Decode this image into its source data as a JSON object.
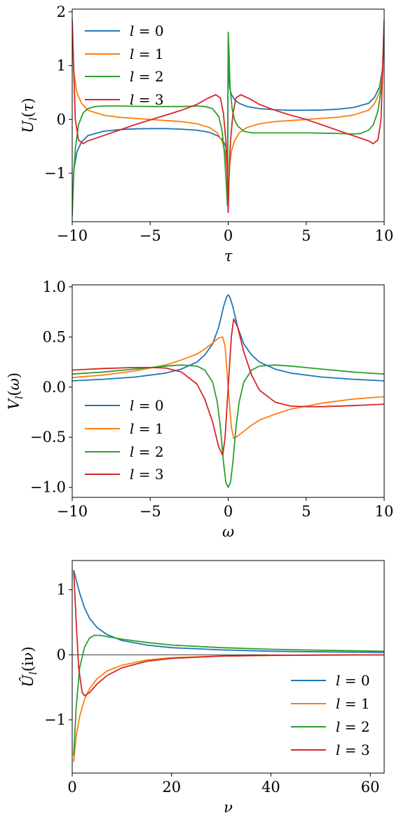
{
  "colors": [
    "#1f77b4",
    "#ff7f0e",
    "#2ca02c",
    "#d62728"
  ],
  "chart_data": [
    {
      "type": "line",
      "xlabel": "τ",
      "ylabel": "U_l(τ)",
      "xlim": [
        -10,
        10
      ],
      "ylim": [
        -1.9,
        2.05
      ],
      "xticks": [
        -10,
        -5,
        0,
        5,
        10
      ],
      "xtick_labels": [
        "−10",
        "−5",
        "0",
        "5",
        "10"
      ],
      "yticks": [
        -1,
        0,
        1,
        2
      ],
      "ytick_labels": [
        "−1",
        "0",
        "1",
        "2"
      ],
      "legend": "top-left",
      "grid": false,
      "series": [
        {
          "name": "l = 0",
          "x": [
            -10,
            -9.9,
            -9.7,
            -9.4,
            -9,
            -8,
            -7,
            -6,
            -5,
            -4,
            -3,
            -2,
            -1.2,
            -0.7,
            -0.4,
            -0.2,
            -0.1,
            -0.03,
            0,
            0.03,
            0.1,
            0.2,
            0.4,
            0.7,
            1.2,
            2,
            3,
            4,
            5,
            6,
            7,
            8,
            9,
            9.4,
            9.7,
            9.9,
            10
          ],
          "y": [
            -1.75,
            -0.95,
            -0.6,
            -0.42,
            -0.3,
            -0.22,
            -0.19,
            -0.175,
            -0.17,
            -0.17,
            -0.18,
            -0.2,
            -0.24,
            -0.3,
            -0.37,
            -0.47,
            -0.58,
            -0.9,
            1.3,
            0.9,
            0.58,
            0.47,
            0.37,
            0.3,
            0.24,
            0.2,
            0.18,
            0.17,
            0.17,
            0.175,
            0.19,
            0.22,
            0.3,
            0.42,
            0.6,
            0.95,
            1.75
          ]
        },
        {
          "name": "l = 1",
          "x": [
            -10,
            -9.9,
            -9.7,
            -9.4,
            -9,
            -8,
            -7,
            -6,
            -5,
            -4,
            -3,
            -2,
            -1.2,
            -0.7,
            -0.4,
            -0.2,
            -0.1,
            -0.03,
            0,
            0.03,
            0.1,
            0.2,
            0.4,
            0.7,
            1.2,
            2,
            3,
            4,
            5,
            6,
            7,
            8,
            9,
            9.4,
            9.7,
            9.9,
            10
          ],
          "y": [
            1.75,
            0.9,
            0.5,
            0.3,
            0.17,
            0.08,
            0.04,
            0.02,
            0.0,
            -0.02,
            -0.04,
            -0.08,
            -0.15,
            -0.25,
            -0.4,
            -0.6,
            -0.85,
            -1.2,
            -1.6,
            -1.2,
            -0.85,
            -0.6,
            -0.4,
            -0.25,
            -0.15,
            -0.08,
            -0.04,
            -0.02,
            0.0,
            0.02,
            0.04,
            0.08,
            0.17,
            0.3,
            0.5,
            0.9,
            1.75
          ]
        },
        {
          "name": "l = 2",
          "x": [
            -10,
            -9.9,
            -9.8,
            -9.6,
            -9.3,
            -9,
            -8.5,
            -8,
            -7,
            -5,
            -3,
            -2,
            -1.5,
            -1,
            -0.6,
            -0.4,
            -0.25,
            -0.12,
            -0.05,
            0,
            0.05,
            0.12,
            0.25,
            0.4,
            0.6,
            1,
            1.5,
            2,
            3,
            5,
            7,
            8,
            8.5,
            9,
            9.3,
            9.6,
            9.8,
            9.9,
            10
          ],
          "y": [
            -1.8,
            -1.0,
            -0.55,
            -0.1,
            0.12,
            0.2,
            0.24,
            0.25,
            0.25,
            0.24,
            0.24,
            0.25,
            0.24,
            0.2,
            0.05,
            -0.2,
            -0.6,
            -1.2,
            -1.6,
            1.62,
            1.3,
            0.6,
            0.2,
            0.0,
            -0.12,
            -0.22,
            -0.25,
            -0.25,
            -0.25,
            -0.25,
            -0.26,
            -0.27,
            -0.26,
            -0.2,
            -0.1,
            0.15,
            0.55,
            1.0,
            1.8
          ]
        },
        {
          "name": "l = 3",
          "x": [
            -10,
            -9.9,
            -9.8,
            -9.6,
            -9.3,
            -9,
            -8,
            -7,
            -6,
            -5,
            -4,
            -3,
            -2,
            -1.4,
            -0.8,
            -0.5,
            -0.3,
            -0.15,
            -0.06,
            0,
            0.06,
            0.15,
            0.3,
            0.5,
            0.8,
            1.4,
            2,
            3,
            4,
            5,
            6,
            7,
            8,
            9,
            9.3,
            9.6,
            9.8,
            9.9,
            10
          ],
          "y": [
            1.85,
            0.9,
            0.0,
            -0.38,
            -0.45,
            -0.4,
            -0.3,
            -0.2,
            -0.1,
            -0.01,
            0.08,
            0.17,
            0.28,
            0.38,
            0.46,
            0.4,
            0.1,
            -0.4,
            -1.0,
            -1.73,
            -1.0,
            -0.4,
            0.1,
            0.4,
            0.46,
            0.38,
            0.28,
            0.17,
            0.08,
            0.0,
            -0.1,
            -0.2,
            -0.3,
            -0.4,
            -0.45,
            -0.38,
            0.0,
            0.9,
            1.85
          ]
        }
      ]
    },
    {
      "type": "line",
      "xlabel": "ω",
      "ylabel": "V_l(ω)",
      "xlim": [
        -10,
        10
      ],
      "ylim": [
        -1.1,
        1.02
      ],
      "xticks": [
        -10,
        -5,
        0,
        5,
        10
      ],
      "xtick_labels": [
        "−10",
        "−5",
        "0",
        "5",
        "10"
      ],
      "yticks": [
        -1.0,
        -0.5,
        0.0,
        0.5,
        1.0
      ],
      "ytick_labels": [
        "−1.0",
        "−0.5",
        "0.0",
        "0.5",
        "1.0"
      ],
      "legend": "lower-left",
      "grid": false,
      "series": [
        {
          "name": "l = 0",
          "x": [
            -10,
            -8,
            -6,
            -4,
            -3,
            -2,
            -1.5,
            -1,
            -0.6,
            -0.3,
            -0.1,
            0,
            0.1,
            0.3,
            0.6,
            1,
            1.5,
            2,
            3,
            4,
            6,
            8,
            10
          ],
          "y": [
            0.062,
            0.078,
            0.1,
            0.14,
            0.18,
            0.25,
            0.32,
            0.43,
            0.6,
            0.8,
            0.9,
            0.92,
            0.9,
            0.8,
            0.6,
            0.43,
            0.32,
            0.25,
            0.18,
            0.14,
            0.1,
            0.078,
            0.062
          ]
        },
        {
          "name": "l = 1",
          "x": [
            -10,
            -8,
            -6,
            -4,
            -3,
            -2,
            -1.5,
            -1,
            -0.6,
            -0.35,
            -0.2,
            -0.1,
            0,
            0.1,
            0.2,
            0.35,
            0.6,
            1,
            1.5,
            2,
            3,
            4,
            6,
            8,
            10
          ],
          "y": [
            0.095,
            0.12,
            0.16,
            0.22,
            0.27,
            0.33,
            0.38,
            0.44,
            0.49,
            0.5,
            0.4,
            0.2,
            0.0,
            -0.2,
            -0.4,
            -0.51,
            -0.49,
            -0.44,
            -0.38,
            -0.33,
            -0.27,
            -0.22,
            -0.16,
            -0.12,
            -0.095
          ]
        },
        {
          "name": "l = 2",
          "x": [
            -10,
            -8,
            -6,
            -4,
            -3,
            -2,
            -1.5,
            -1,
            -0.7,
            -0.5,
            -0.3,
            -0.15,
            0,
            0.15,
            0.3,
            0.5,
            0.7,
            1,
            1.5,
            2,
            3,
            4,
            6,
            8,
            10
          ],
          "y": [
            0.13,
            0.15,
            0.18,
            0.21,
            0.22,
            0.21,
            0.17,
            0.05,
            -0.15,
            -0.4,
            -0.75,
            -0.95,
            -1.0,
            -0.95,
            -0.75,
            -0.4,
            -0.15,
            0.05,
            0.17,
            0.21,
            0.22,
            0.21,
            0.18,
            0.15,
            0.13
          ]
        },
        {
          "name": "l = 3",
          "x": [
            -10,
            -8,
            -6,
            -5,
            -4,
            -3,
            -2,
            -1.5,
            -1,
            -0.6,
            -0.35,
            -0.2,
            -0.1,
            0,
            0.1,
            0.2,
            0.35,
            0.6,
            1,
            1.5,
            2,
            3,
            4,
            5,
            6,
            8,
            10
          ],
          "y": [
            0.17,
            0.185,
            0.195,
            0.195,
            0.19,
            0.15,
            0.03,
            -0.12,
            -0.35,
            -0.6,
            -0.68,
            -0.5,
            -0.25,
            0.0,
            0.25,
            0.5,
            0.68,
            0.6,
            0.35,
            0.12,
            -0.03,
            -0.15,
            -0.19,
            -0.195,
            -0.195,
            -0.185,
            -0.17
          ]
        }
      ]
    },
    {
      "type": "line",
      "xlabel": "ν",
      "ylabel": "Û_l(iν)",
      "xlim": [
        0,
        62.8
      ],
      "ylim": [
        -1.82,
        1.45
      ],
      "xticks": [
        0,
        20,
        40,
        60
      ],
      "xtick_labels": [
        "0",
        "20",
        "40",
        "60"
      ],
      "yticks": [
        -1,
        0,
        1
      ],
      "ytick_labels": [
        "−1",
        "0",
        "1"
      ],
      "zero_line": true,
      "legend": "lower-right",
      "grid": false,
      "series": [
        {
          "name": "l = 0",
          "x": [
            0.3,
            0.8,
            1.5,
            2.5,
            3.5,
            5,
            7,
            10,
            15,
            20,
            30,
            40,
            50,
            62.8
          ],
          "y": [
            1.3,
            1.15,
            0.95,
            0.72,
            0.56,
            0.42,
            0.31,
            0.22,
            0.15,
            0.11,
            0.075,
            0.055,
            0.045,
            0.036
          ]
        },
        {
          "name": "l = 1",
          "x": [
            0.3,
            0.8,
            1.5,
            2.5,
            3.5,
            5,
            7,
            10,
            15,
            20,
            30,
            40,
            50,
            62.8
          ],
          "y": [
            -1.65,
            -1.25,
            -0.95,
            -0.68,
            -0.52,
            -0.37,
            -0.25,
            -0.16,
            -0.08,
            -0.045,
            -0.02,
            -0.01,
            -0.005,
            -0.002
          ]
        },
        {
          "name": "l = 2",
          "x": [
            0.3,
            0.8,
            1.5,
            2.5,
            3.5,
            4.5,
            5.5,
            7,
            10,
            15,
            20,
            30,
            40,
            50,
            62.8
          ],
          "y": [
            -1.55,
            -0.8,
            -0.2,
            0.12,
            0.26,
            0.3,
            0.3,
            0.28,
            0.24,
            0.19,
            0.15,
            0.11,
            0.085,
            0.07,
            0.055
          ]
        },
        {
          "name": "l = 3",
          "x": [
            0.3,
            0.8,
            1.3,
            2,
            2.5,
            3.5,
            5,
            7,
            10,
            15,
            20,
            30,
            40,
            50,
            62.8
          ],
          "y": [
            1.3,
            0.5,
            -0.2,
            -0.58,
            -0.63,
            -0.58,
            -0.45,
            -0.32,
            -0.2,
            -0.1,
            -0.055,
            -0.02,
            -0.008,
            -0.004,
            -0.002
          ]
        }
      ]
    }
  ]
}
